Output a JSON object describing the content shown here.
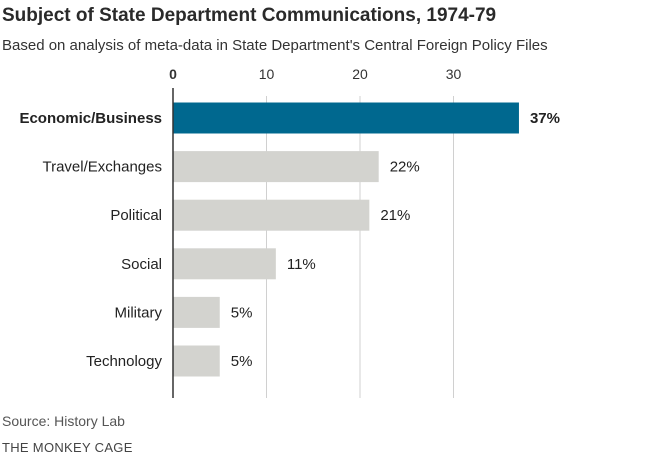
{
  "chart_data": {
    "type": "bar",
    "orientation": "horizontal",
    "title": "Subject of State Department Communications, 1974-79",
    "subtitle": "Based on analysis of meta-data in State Department's Central Foreign Policy Files",
    "categories": [
      "Economic/Business",
      "Travel/Exchanges",
      "Political",
      "Social",
      "Military",
      "Technology"
    ],
    "values": [
      37,
      22,
      21,
      11,
      5,
      5
    ],
    "value_labels": [
      "37%",
      "22%",
      "21%",
      "11%",
      "5%",
      "5%"
    ],
    "highlight_index": 0,
    "xticks": [
      0,
      10,
      20,
      30
    ],
    "xlim": [
      0,
      37
    ],
    "xlabel": "",
    "ylabel": "",
    "grid": true,
    "highlight_color": "#00688f",
    "bar_color": "#d3d3cf",
    "grid_color": "#d0d0d0"
  },
  "footer": {
    "source": "Source: History Lab",
    "brand": "THE MONKEY CAGE"
  }
}
